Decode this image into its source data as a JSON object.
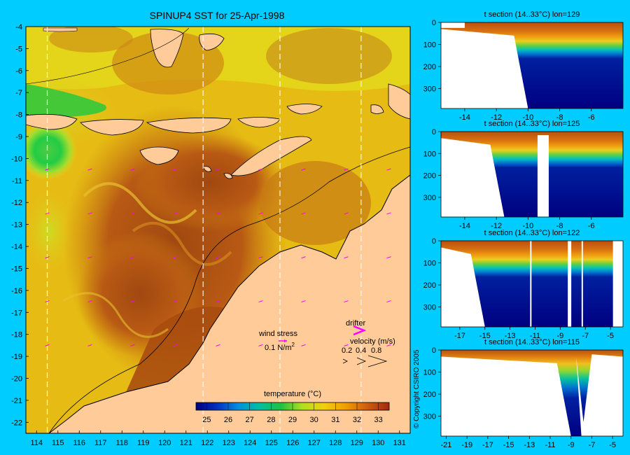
{
  "map": {
    "title": "SPINUP4 SST for 25-Apr-1998",
    "chart_type": "heatmap",
    "xticks": [
      114,
      115,
      116,
      117,
      118,
      119,
      120,
      121,
      122,
      123,
      124,
      125,
      126,
      127,
      128,
      129,
      130,
      131
    ],
    "yticks": [
      -4,
      -5,
      -6,
      -7,
      -8,
      -9,
      -10,
      -11,
      -12,
      -13,
      -14,
      -15,
      -16,
      -17,
      -18,
      -19,
      -20,
      -21,
      -22
    ],
    "xlim": [
      113.5,
      131.5
    ],
    "ylim": [
      -22.5,
      -4
    ],
    "section_lons": [
      114.5,
      121.8,
      125.4,
      129.2
    ],
    "wind_label": "wind stress",
    "wind_scale_label": "0.1 N/m",
    "wind_scale_sup": "2",
    "drifter_label": "drifter",
    "velocity_label": "velocity (m/s)",
    "velocity_scale": [
      "0.2",
      "0.4",
      "0.8"
    ],
    "colorbar_title": "temperature (°C)",
    "colorbar_ticks": [
      25,
      26,
      27,
      28,
      29,
      30,
      31,
      32,
      33
    ],
    "colorbar_range": [
      24.5,
      33.5
    ],
    "colors": {
      "background": "#00ccff",
      "land": "#ffcc99",
      "warm": "#a0400a",
      "cool": "#22cc44",
      "drifter": "#ff00ff",
      "deep": "#000080"
    }
  },
  "copyright": "© Copyright CSIRO 2005",
  "chart_data": [
    {
      "type": "heatmap",
      "title": "t section (14..33°C) lon=129",
      "xticks": [
        -14,
        -12,
        -10,
        -8,
        -6
      ],
      "yticks": [
        0,
        100,
        200,
        300
      ],
      "xlim": [
        -15.5,
        -4
      ],
      "ylim": [
        0,
        390
      ],
      "bathymetry_edge_lat": -10,
      "thermocline_depth": [
        100,
        160
      ]
    },
    {
      "type": "heatmap",
      "title": "t section (14..33°C) lon=125",
      "xticks": [
        -14,
        -12,
        -10,
        -8,
        -6
      ],
      "yticks": [
        0,
        100,
        200,
        300
      ],
      "xlim": [
        -15.5,
        -4
      ],
      "ylim": [
        0,
        390
      ],
      "bathymetry_edge_lat": -11.5,
      "thermocline_depth": [
        100,
        160
      ]
    },
    {
      "type": "heatmap",
      "title": "t section (14..33°C) lon=122",
      "xticks": [
        -17,
        -15,
        -13,
        -11,
        -9,
        -7,
        -5
      ],
      "yticks": [
        0,
        100,
        200,
        300
      ],
      "xlim": [
        -18.5,
        -4
      ],
      "ylim": [
        0,
        390
      ],
      "bathymetry_edge_lat": -15,
      "thermocline_depth": [
        100,
        160
      ]
    },
    {
      "type": "heatmap",
      "title": "t section (14..33°C) lon=115",
      "xticks": [
        -21,
        -19,
        -17,
        -15,
        -13,
        -11,
        -9,
        -7,
        -5
      ],
      "yticks": [
        0,
        100,
        200,
        300
      ],
      "xlim": [
        -21.5,
        -4
      ],
      "ylim": [
        0,
        390
      ],
      "bathymetry_edge_lat": -9,
      "thermocline_depth": [
        110,
        200
      ]
    }
  ]
}
